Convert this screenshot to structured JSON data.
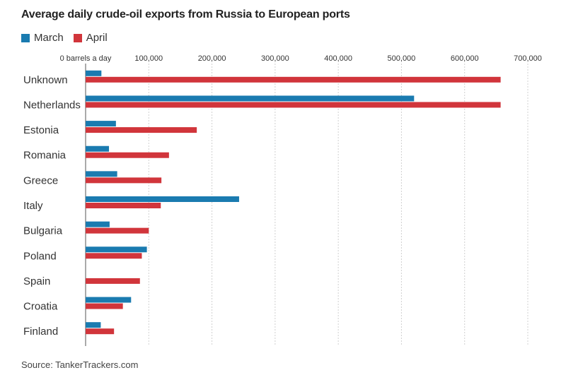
{
  "chart_data": {
    "type": "bar",
    "orientation": "horizontal",
    "title": "Average daily crude-oil exports from Russia to European ports",
    "xlabel": "",
    "ylabel": "",
    "xlim": [
      0,
      700000
    ],
    "x_tick_labels": [
      "0 barrels a day",
      "100,000",
      "200,000",
      "300,000",
      "400,000",
      "500,000",
      "600,000",
      "700,000"
    ],
    "x_ticks": [
      0,
      100000,
      200000,
      300000,
      400000,
      500000,
      600000,
      700000
    ],
    "grid": true,
    "legend_position": "top-left",
    "categories": [
      "Unknown",
      "Netherlands",
      "Estonia",
      "Romania",
      "Greece",
      "Italy",
      "Bulgaria",
      "Poland",
      "Spain",
      "Croatia",
      "Finland"
    ],
    "series": [
      {
        "name": "March",
        "color": "#1a7bb0",
        "values": [
          25000,
          520000,
          48000,
          37000,
          50000,
          243000,
          38000,
          97000,
          0,
          72000,
          24000
        ]
      },
      {
        "name": "April",
        "color": "#d1353b",
        "values": [
          657000,
          657000,
          176000,
          132000,
          120000,
          119000,
          100000,
          89000,
          86000,
          59000,
          45000
        ]
      }
    ]
  },
  "source": "Source: TankerTrackers.com"
}
